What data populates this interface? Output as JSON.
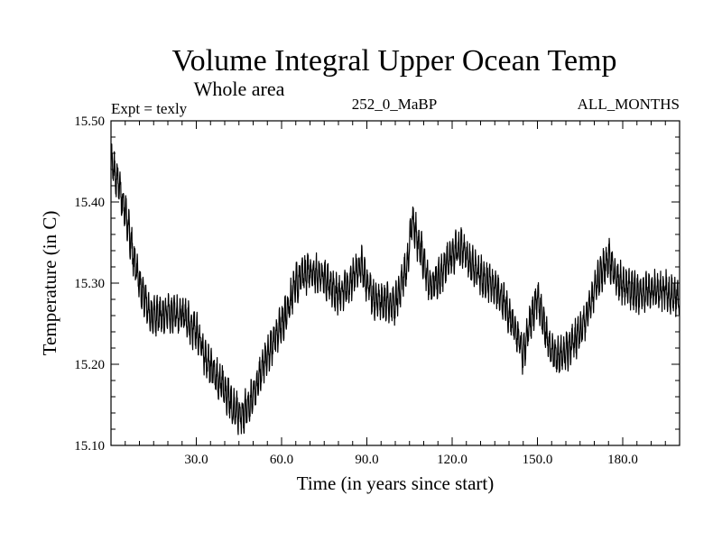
{
  "chart_data": {
    "type": "line",
    "title": "Volume Integral Upper Ocean Temp",
    "subtitle": "Whole area",
    "expt_label": "Expt = texly",
    "run_label": "252_0_MaBP",
    "months_label": "ALL_MONTHS",
    "xlabel": "Time (in years since start)",
    "ylabel": "Temperature (in C)",
    "xlim": [
      0,
      200
    ],
    "ylim": [
      15.1,
      15.5
    ],
    "xticks": [
      30,
      60,
      90,
      120,
      150,
      180
    ],
    "xtick_labels": [
      "30.0",
      "60.0",
      "90.0",
      "120.0",
      "150.0",
      "180.0"
    ],
    "yticks": [
      15.1,
      15.2,
      15.3,
      15.4,
      15.5
    ],
    "ytick_labels": [
      "15.10",
      "15.20",
      "15.30",
      "15.40",
      "15.50"
    ],
    "series": [
      {
        "name": "Volume integral upper ocean temperature",
        "color": "#000000",
        "trend_x": [
          0,
          2,
          5,
          8,
          11,
          14,
          18,
          22,
          26,
          30,
          33,
          36,
          40,
          43,
          46,
          50,
          54,
          58,
          62,
          65,
          70,
          75,
          80,
          85,
          88,
          92,
          96,
          100,
          104,
          106,
          109,
          112,
          116,
          120,
          123,
          127,
          131,
          135,
          139,
          143,
          145,
          147,
          150,
          152,
          155,
          158,
          161,
          165,
          168,
          172,
          175,
          178,
          182,
          186,
          190,
          195,
          200
        ],
        "trend_y": [
          15.45,
          15.43,
          15.39,
          15.33,
          15.29,
          15.26,
          15.26,
          15.265,
          15.255,
          15.24,
          15.21,
          15.19,
          15.17,
          15.145,
          15.135,
          15.16,
          15.2,
          15.235,
          15.265,
          15.3,
          15.315,
          15.305,
          15.285,
          15.305,
          15.325,
          15.28,
          15.275,
          15.275,
          15.32,
          15.375,
          15.34,
          15.295,
          15.31,
          15.335,
          15.345,
          15.32,
          15.305,
          15.295,
          15.27,
          15.235,
          15.21,
          15.245,
          15.285,
          15.255,
          15.215,
          15.21,
          15.22,
          15.24,
          15.265,
          15.31,
          15.33,
          15.305,
          15.295,
          15.285,
          15.29,
          15.29,
          15.28
        ],
        "noise_amplitude": 0.018,
        "samples_per_year": 12
      }
    ]
  }
}
